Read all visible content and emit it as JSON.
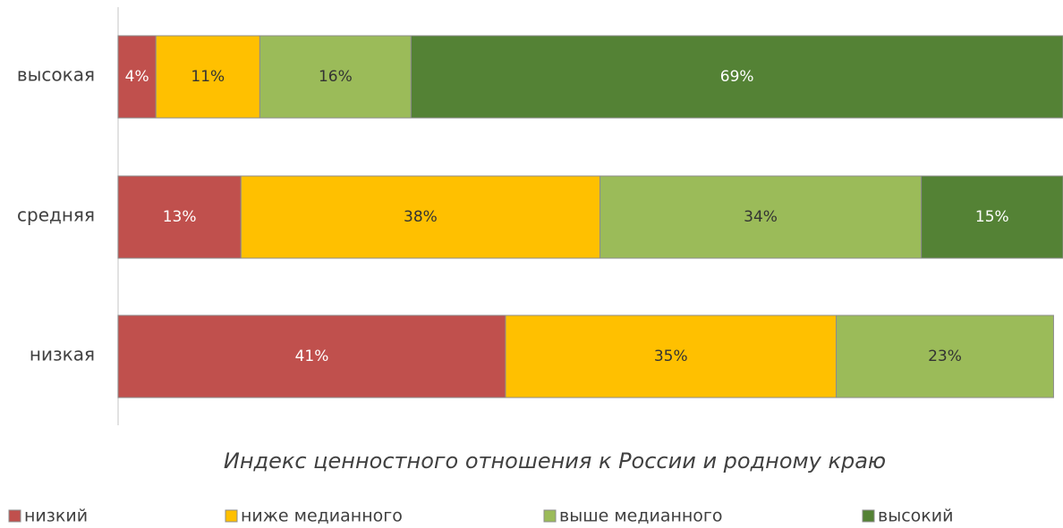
{
  "chart_data": {
    "type": "bar",
    "orientation": "horizontal",
    "stacked": true,
    "title": "Индекс ценностного отношения к России и родному краю",
    "categories": [
      "высокая",
      "средняя",
      "низкая"
    ],
    "xlim": [
      0,
      100
    ],
    "legend": "bottom",
    "series": [
      {
        "name": "низкий",
        "color": "#c0504d",
        "label_color": "#ffffff",
        "values": [
          4,
          13,
          41
        ],
        "value_labels": [
          "4%",
          "13%",
          "41%"
        ]
      },
      {
        "name": "ниже медианного",
        "color": "#ffc000",
        "label_color": "#333333",
        "values": [
          11,
          38,
          35
        ],
        "value_labels": [
          "11%",
          "38%",
          "35%"
        ]
      },
      {
        "name": "выше медианного",
        "color": "#9bbb59",
        "label_color": "#333333",
        "values": [
          16,
          34,
          23
        ],
        "value_labels": [
          "16%",
          "34%",
          "23%"
        ]
      },
      {
        "name": "высокий",
        "color": "#548235",
        "label_color": "#ffffff",
        "values": [
          69,
          15,
          null
        ],
        "value_labels": [
          "69%",
          "15%",
          null
        ]
      }
    ]
  }
}
